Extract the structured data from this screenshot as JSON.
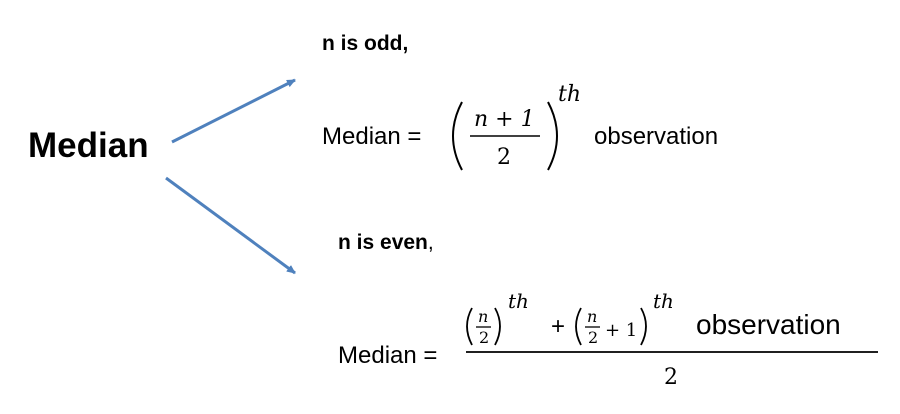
{
  "diagram": {
    "center_label": "Median",
    "branch_odd": {
      "label_bold": "n is odd,",
      "label_rest": "",
      "formula_lhs": "Median =",
      "numerator": "n + 1",
      "denominator": "2",
      "superscript": "th",
      "suffix": "observation"
    },
    "branch_even": {
      "label_bold": "n is even",
      "label_rest": ",",
      "formula_lhs": "Median =",
      "term1_num": "n",
      "term1_den": "2",
      "term1_sup": "th",
      "plus": "+",
      "term2_num": "n",
      "term2_den": "2",
      "term2_plus_one": "+ 1",
      "term2_sup": "th",
      "suffix": "observation",
      "outer_denominator": "2"
    },
    "arrow_color": "#4F81BD"
  }
}
